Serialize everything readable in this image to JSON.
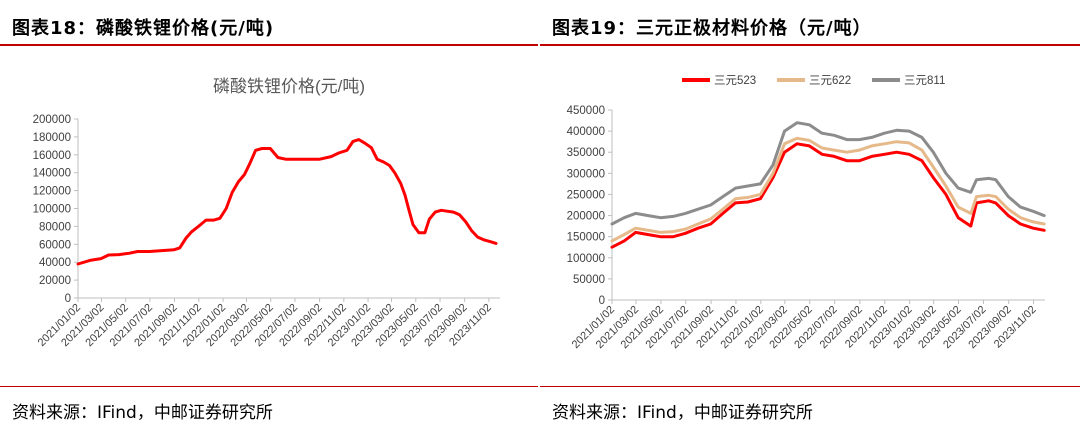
{
  "left": {
    "figure_title": "图表18：磷酸铁锂价格(元/吨)",
    "source": "资料来源：IFind，中邮证券研究所"
  },
  "right": {
    "figure_title": "图表19：三元正极材料价格（元/吨）",
    "source": "资料来源：IFind，中邮证券研究所"
  },
  "colors": {
    "accent": "#c00000",
    "red": "#ff0000",
    "tan": "#e6b98a",
    "gray": "#8c8c8c",
    "axis": "#bfbfbf"
  },
  "chart_data": [
    {
      "type": "line",
      "title": "磷酸铁锂价格(元/吨)",
      "ylim": [
        0,
        200000
      ],
      "yticks": [
        0,
        20000,
        40000,
        60000,
        80000,
        100000,
        120000,
        140000,
        160000,
        180000,
        200000
      ],
      "xticks": [
        "2021/01/02",
        "2021/03/02",
        "2021/05/02",
        "2021/07/02",
        "2021/09/02",
        "2021/11/02",
        "2022/01/02",
        "2022/03/02",
        "2022/05/02",
        "2022/07/02",
        "2022/09/02",
        "2022/11/02",
        "2023/01/02",
        "2023/03/02",
        "2023/05/02",
        "2023/07/02",
        "2023/09/02",
        "2023/11/02"
      ],
      "xlim": [
        "2021/01/02",
        "2023/11/30"
      ],
      "series": [
        {
          "color": "#ff0000",
          "x": [
            "2021/01/02",
            "2021/02/01",
            "2021/03/01",
            "2021/03/20",
            "2021/04/15",
            "2021/05/10",
            "2021/06/01",
            "2021/07/01",
            "2021/08/01",
            "2021/09/01",
            "2021/09/15",
            "2021/10/01",
            "2021/10/15",
            "2021/11/01",
            "2021/11/20",
            "2021/12/10",
            "2021/12/25",
            "2022/01/10",
            "2022/01/25",
            "2022/02/10",
            "2022/02/25",
            "2022/03/10",
            "2022/03/25",
            "2022/04/10",
            "2022/05/01",
            "2022/05/20",
            "2022/06/10",
            "2022/07/01",
            "2022/08/01",
            "2022/09/01",
            "2022/10/01",
            "2022/10/20",
            "2022/11/10",
            "2022/11/25",
            "2022/12/10",
            "2022/12/25",
            "2023/01/10",
            "2023/01/25",
            "2023/02/10",
            "2023/02/25",
            "2023/03/10",
            "2023/03/25",
            "2023/04/05",
            "2023/04/15",
            "2023/04/25",
            "2023/05/10",
            "2023/05/25",
            "2023/06/05",
            "2023/06/20",
            "2023/07/05",
            "2023/07/20",
            "2023/08/05",
            "2023/08/20",
            "2023/09/05",
            "2023/09/20",
            "2023/10/05",
            "2023/10/20",
            "2023/11/05",
            "2023/11/20"
          ],
          "y": [
            38000,
            42000,
            44000,
            48000,
            48500,
            50000,
            52000,
            52000,
            53000,
            54000,
            56000,
            67000,
            74000,
            80000,
            87000,
            87000,
            89000,
            100000,
            118000,
            130000,
            138000,
            150000,
            165000,
            167000,
            167000,
            157000,
            155000,
            155000,
            155000,
            155000,
            158000,
            162000,
            165000,
            175000,
            177000,
            173000,
            168000,
            155000,
            152000,
            148000,
            140000,
            128000,
            115000,
            98000,
            82000,
            73000,
            73000,
            88000,
            96000,
            98000,
            97000,
            96000,
            93000,
            85000,
            75000,
            68000,
            65000,
            63000,
            61000
          ]
        }
      ]
    },
    {
      "type": "line",
      "ylim": [
        0,
        450000
      ],
      "yticks": [
        0,
        50000,
        100000,
        150000,
        200000,
        250000,
        300000,
        350000,
        400000,
        450000
      ],
      "xticks": [
        "2021/01/02",
        "2021/03/02",
        "2021/05/02",
        "2021/07/02",
        "2021/09/02",
        "2021/11/02",
        "2022/01/02",
        "2022/03/02",
        "2022/05/02",
        "2022/07/02",
        "2022/09/02",
        "2022/11/02",
        "2023/01/02",
        "2023/03/02",
        "2023/05/02",
        "2023/07/02",
        "2023/09/02",
        "2023/11/02"
      ],
      "xlim": [
        "2021/01/02",
        "2023/11/30"
      ],
      "legend_position": "top",
      "series": [
        {
          "name": "三元523",
          "color": "#ff0000",
          "x": [
            "2021/01/02",
            "2021/02/01",
            "2021/03/01",
            "2021/04/01",
            "2021/05/01",
            "2021/06/01",
            "2021/07/01",
            "2021/08/01",
            "2021/09/01",
            "2021/10/01",
            "2021/11/01",
            "2021/12/01",
            "2022/01/01",
            "2022/02/01",
            "2022/03/01",
            "2022/04/01",
            "2022/05/01",
            "2022/06/01",
            "2022/07/01",
            "2022/08/01",
            "2022/09/01",
            "2022/10/01",
            "2022/11/01",
            "2022/12/01",
            "2023/01/01",
            "2023/02/01",
            "2023/03/01",
            "2023/04/01",
            "2023/05/01",
            "2023/06/01",
            "2023/06/15",
            "2023/07/15",
            "2023/08/01",
            "2023/09/01",
            "2023/10/01",
            "2023/11/01",
            "2023/11/28"
          ],
          "y": [
            125000,
            140000,
            160000,
            155000,
            150000,
            150000,
            158000,
            170000,
            180000,
            205000,
            230000,
            232000,
            240000,
            290000,
            350000,
            370000,
            365000,
            345000,
            340000,
            330000,
            330000,
            340000,
            345000,
            350000,
            345000,
            330000,
            290000,
            250000,
            195000,
            175000,
            230000,
            235000,
            230000,
            200000,
            180000,
            170000,
            165000
          ]
        },
        {
          "name": "三元622",
          "color": "#e6b98a",
          "x": [
            "2021/01/02",
            "2021/02/01",
            "2021/03/01",
            "2021/04/01",
            "2021/05/01",
            "2021/06/01",
            "2021/07/01",
            "2021/08/01",
            "2021/09/01",
            "2021/10/01",
            "2021/11/01",
            "2021/12/01",
            "2022/01/01",
            "2022/02/01",
            "2022/03/01",
            "2022/04/01",
            "2022/05/01",
            "2022/06/01",
            "2022/07/01",
            "2022/08/01",
            "2022/09/01",
            "2022/10/01",
            "2022/11/01",
            "2022/12/01",
            "2023/01/01",
            "2023/02/01",
            "2023/03/01",
            "2023/04/01",
            "2023/05/01",
            "2023/06/01",
            "2023/06/15",
            "2023/07/15",
            "2023/08/01",
            "2023/09/01",
            "2023/10/01",
            "2023/11/01",
            "2023/11/28"
          ],
          "y": [
            140000,
            155000,
            170000,
            165000,
            160000,
            162000,
            168000,
            180000,
            192000,
            215000,
            240000,
            243000,
            250000,
            300000,
            370000,
            383000,
            378000,
            360000,
            355000,
            350000,
            355000,
            365000,
            370000,
            375000,
            372000,
            355000,
            315000,
            270000,
            220000,
            205000,
            245000,
            248000,
            245000,
            215000,
            195000,
            185000,
            180000
          ]
        },
        {
          "name": "三元811",
          "color": "#8c8c8c",
          "x": [
            "2021/01/02",
            "2021/02/01",
            "2021/03/01",
            "2021/04/01",
            "2021/05/01",
            "2021/06/01",
            "2021/07/01",
            "2021/08/01",
            "2021/09/01",
            "2021/10/01",
            "2021/11/01",
            "2021/12/01",
            "2022/01/01",
            "2022/02/01",
            "2022/03/01",
            "2022/04/01",
            "2022/05/01",
            "2022/06/01",
            "2022/07/01",
            "2022/08/01",
            "2022/09/01",
            "2022/10/01",
            "2022/11/01",
            "2022/12/01",
            "2023/01/01",
            "2023/02/01",
            "2023/03/01",
            "2023/04/01",
            "2023/05/01",
            "2023/06/01",
            "2023/06/15",
            "2023/07/15",
            "2023/08/01",
            "2023/09/01",
            "2023/10/01",
            "2023/11/01",
            "2023/11/28"
          ],
          "y": [
            180000,
            195000,
            205000,
            200000,
            195000,
            198000,
            205000,
            215000,
            225000,
            245000,
            265000,
            270000,
            275000,
            320000,
            400000,
            420000,
            415000,
            395000,
            390000,
            380000,
            380000,
            385000,
            395000,
            402000,
            400000,
            385000,
            350000,
            300000,
            265000,
            255000,
            285000,
            288000,
            285000,
            245000,
            220000,
            210000,
            200000
          ]
        }
      ]
    }
  ]
}
